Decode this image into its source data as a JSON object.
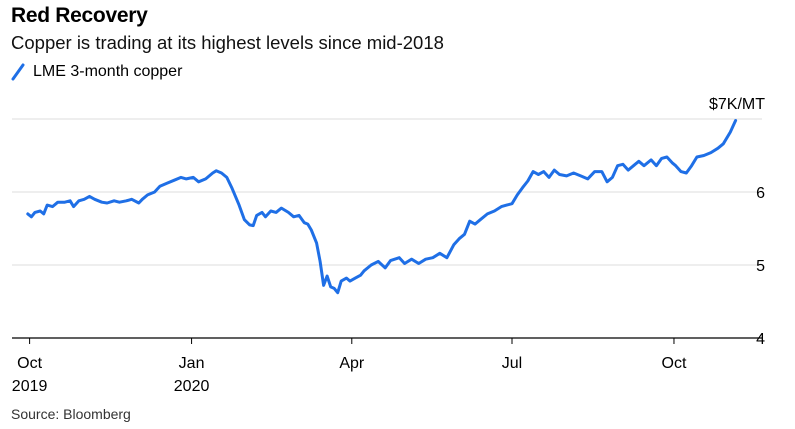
{
  "header": {
    "title": "Red Recovery",
    "subtitle": "Copper is trading at its highest levels since mid-2018"
  },
  "legend": {
    "series_name": "LME 3-month copper",
    "color": "#1f6fe6"
  },
  "footer": {
    "source": "Source: Bloomberg"
  },
  "chart_data": {
    "type": "line",
    "title": "Red Recovery",
    "subtitle": "Copper is trading at its highest levels since mid-2018",
    "xlabel": "",
    "ylabel": "",
    "y_unit_label": "$7K/MT",
    "ylim": [
      4,
      7
    ],
    "y_ticks": [
      {
        "value": 7,
        "label": "$7K/MT"
      },
      {
        "value": 6,
        "label": "6"
      },
      {
        "value": 5,
        "label": "5"
      },
      {
        "value": 4,
        "label": "4"
      }
    ],
    "x_ticks": [
      {
        "date": "2019-10-01",
        "label": "Oct",
        "sublabel": "2019"
      },
      {
        "date": "2020-01-01",
        "label": "Jan",
        "sublabel": "2020"
      },
      {
        "date": "2020-04-01",
        "label": "Apr",
        "sublabel": ""
      },
      {
        "date": "2020-07-01",
        "label": "Jul",
        "sublabel": ""
      },
      {
        "date": "2020-10-01",
        "label": "Oct",
        "sublabel": ""
      }
    ],
    "xlim": [
      "2019-09-21",
      "2020-11-20"
    ],
    "grid": true,
    "legend_position": "top-left",
    "series": [
      {
        "name": "LME 3-month copper",
        "color": "#1f6fe6",
        "points": [
          [
            "2019-09-30",
            5.7
          ],
          [
            "2019-10-02",
            5.66
          ],
          [
            "2019-10-04",
            5.72
          ],
          [
            "2019-10-07",
            5.74
          ],
          [
            "2019-10-09",
            5.7
          ],
          [
            "2019-10-11",
            5.82
          ],
          [
            "2019-10-14",
            5.8
          ],
          [
            "2019-10-17",
            5.86
          ],
          [
            "2019-10-21",
            5.86
          ],
          [
            "2019-10-24",
            5.88
          ],
          [
            "2019-10-26",
            5.8
          ],
          [
            "2019-10-29",
            5.88
          ],
          [
            "2019-11-01",
            5.9
          ],
          [
            "2019-11-04",
            5.94
          ],
          [
            "2019-11-07",
            5.9
          ],
          [
            "2019-11-11",
            5.86
          ],
          [
            "2019-11-14",
            5.85
          ],
          [
            "2019-11-18",
            5.88
          ],
          [
            "2019-11-21",
            5.86
          ],
          [
            "2019-11-25",
            5.88
          ],
          [
            "2019-11-28",
            5.9
          ],
          [
            "2019-12-02",
            5.85
          ],
          [
            "2019-12-04",
            5.9
          ],
          [
            "2019-12-07",
            5.96
          ],
          [
            "2019-12-11",
            6.0
          ],
          [
            "2019-12-14",
            6.08
          ],
          [
            "2019-12-18",
            6.12
          ],
          [
            "2019-12-22",
            6.16
          ],
          [
            "2019-12-26",
            6.2
          ],
          [
            "2019-12-29",
            6.18
          ],
          [
            "2020-01-02",
            6.2
          ],
          [
            "2020-01-05",
            6.14
          ],
          [
            "2020-01-09",
            6.18
          ],
          [
            "2020-01-13",
            6.26
          ],
          [
            "2020-01-15",
            6.29
          ],
          [
            "2020-01-18",
            6.26
          ],
          [
            "2020-01-21",
            6.2
          ],
          [
            "2020-01-24",
            6.05
          ],
          [
            "2020-01-28",
            5.82
          ],
          [
            "2020-01-31",
            5.62
          ],
          [
            "2020-02-03",
            5.55
          ],
          [
            "2020-02-05",
            5.54
          ],
          [
            "2020-02-07",
            5.68
          ],
          [
            "2020-02-10",
            5.72
          ],
          [
            "2020-02-12",
            5.66
          ],
          [
            "2020-02-15",
            5.74
          ],
          [
            "2020-02-18",
            5.72
          ],
          [
            "2020-02-21",
            5.78
          ],
          [
            "2020-02-25",
            5.72
          ],
          [
            "2020-02-28",
            5.66
          ],
          [
            "2020-03-02",
            5.68
          ],
          [
            "2020-03-05",
            5.58
          ],
          [
            "2020-03-07",
            5.56
          ],
          [
            "2020-03-09",
            5.48
          ],
          [
            "2020-03-12",
            5.3
          ],
          [
            "2020-03-14",
            5.05
          ],
          [
            "2020-03-16",
            4.72
          ],
          [
            "2020-03-18",
            4.85
          ],
          [
            "2020-03-20",
            4.7
          ],
          [
            "2020-03-22",
            4.68
          ],
          [
            "2020-03-24",
            4.62
          ],
          [
            "2020-03-26",
            4.78
          ],
          [
            "2020-03-29",
            4.82
          ],
          [
            "2020-03-31",
            4.78
          ],
          [
            "2020-04-03",
            4.82
          ],
          [
            "2020-04-06",
            4.86
          ],
          [
            "2020-04-08",
            4.92
          ],
          [
            "2020-04-12",
            5.0
          ],
          [
            "2020-04-16",
            5.05
          ],
          [
            "2020-04-20",
            4.96
          ],
          [
            "2020-04-23",
            5.06
          ],
          [
            "2020-04-28",
            5.1
          ],
          [
            "2020-05-01",
            5.02
          ],
          [
            "2020-05-05",
            5.08
          ],
          [
            "2020-05-09",
            5.02
          ],
          [
            "2020-05-13",
            5.08
          ],
          [
            "2020-05-17",
            5.1
          ],
          [
            "2020-05-21",
            5.16
          ],
          [
            "2020-05-25",
            5.1
          ],
          [
            "2020-05-29",
            5.28
          ],
          [
            "2020-06-01",
            5.36
          ],
          [
            "2020-06-04",
            5.42
          ],
          [
            "2020-06-07",
            5.6
          ],
          [
            "2020-06-10",
            5.56
          ],
          [
            "2020-06-13",
            5.62
          ],
          [
            "2020-06-17",
            5.7
          ],
          [
            "2020-06-21",
            5.74
          ],
          [
            "2020-06-25",
            5.8
          ],
          [
            "2020-06-28",
            5.82
          ],
          [
            "2020-07-01",
            5.84
          ],
          [
            "2020-07-04",
            5.96
          ],
          [
            "2020-07-07",
            6.06
          ],
          [
            "2020-07-10",
            6.15
          ],
          [
            "2020-07-13",
            6.28
          ],
          [
            "2020-07-16",
            6.24
          ],
          [
            "2020-07-19",
            6.28
          ],
          [
            "2020-07-22",
            6.2
          ],
          [
            "2020-07-25",
            6.3
          ],
          [
            "2020-07-28",
            6.24
          ],
          [
            "2020-08-01",
            6.22
          ],
          [
            "2020-08-05",
            6.26
          ],
          [
            "2020-08-09",
            6.22
          ],
          [
            "2020-08-13",
            6.18
          ],
          [
            "2020-08-17",
            6.28
          ],
          [
            "2020-08-21",
            6.28
          ],
          [
            "2020-08-24",
            6.14
          ],
          [
            "2020-08-27",
            6.2
          ],
          [
            "2020-08-30",
            6.36
          ],
          [
            "2020-09-02",
            6.38
          ],
          [
            "2020-09-05",
            6.3
          ],
          [
            "2020-09-08",
            6.36
          ],
          [
            "2020-09-11",
            6.42
          ],
          [
            "2020-09-14",
            6.36
          ],
          [
            "2020-09-18",
            6.44
          ],
          [
            "2020-09-21",
            6.36
          ],
          [
            "2020-09-24",
            6.46
          ],
          [
            "2020-09-27",
            6.48
          ],
          [
            "2020-09-30",
            6.4
          ],
          [
            "2020-10-02",
            6.36
          ],
          [
            "2020-10-05",
            6.28
          ],
          [
            "2020-10-08",
            6.26
          ],
          [
            "2020-10-11",
            6.36
          ],
          [
            "2020-10-14",
            6.48
          ],
          [
            "2020-10-18",
            6.5
          ],
          [
            "2020-10-22",
            6.54
          ],
          [
            "2020-10-26",
            6.6
          ],
          [
            "2020-10-29",
            6.66
          ],
          [
            "2020-11-02",
            6.82
          ],
          [
            "2020-11-05",
            6.98
          ]
        ]
      }
    ]
  }
}
